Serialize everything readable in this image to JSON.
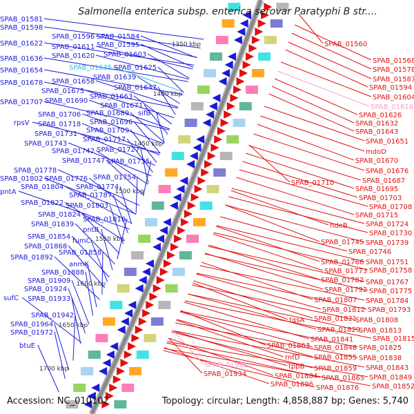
{
  "title": "Salmonella enterica subsp. enterica serovar Paratyphi B str....",
  "footer": {
    "accession": "Accession: NC_010102",
    "summary": "Topology: circular; Length: 4,858,887 bp; Genes: 5,740"
  },
  "colors": {
    "forward_strand": "#1a1ad6",
    "reverse_strand": "#e01010",
    "highlight_blue": "#22bbee",
    "highlight_red": "#f4a0c8",
    "backbone": "#888888",
    "marker": "#228822"
  },
  "scale_ticks": [
    "1350 kbp",
    "1400 kbp",
    "1450 kbp",
    "1500 kbp",
    "1550 kbp",
    "1600 kbp",
    "1650 kbp",
    "1700 kbp"
  ],
  "left_labels": [
    {
      "text": "SPAB_01581"
    },
    {
      "text": "SPAB_01598"
    },
    {
      "text": "SPAB_01596"
    },
    {
      "text": "SPAB_01584"
    },
    {
      "text": "SPAB_01622"
    },
    {
      "text": "SPAB_01611"
    },
    {
      "text": "SPAB_01595"
    },
    {
      "text": "SPAB_01636"
    },
    {
      "text": "SPAB_01620"
    },
    {
      "text": "SPAB_01603"
    },
    {
      "text": "SPAB_01654"
    },
    {
      "text": "SPAB_01635",
      "highlight": true
    },
    {
      "text": "SPAB_01625"
    },
    {
      "text": "SPAB_01678"
    },
    {
      "text": "SPAB_01658"
    },
    {
      "text": "SPAB_01639"
    },
    {
      "text": "SPAB_01675"
    },
    {
      "text": "SPAB_01647"
    },
    {
      "text": "SPAB_01663"
    },
    {
      "text": "SPAB_01707"
    },
    {
      "text": "SPAB_01690"
    },
    {
      "text": "SPAB_01671"
    },
    {
      "text": "SPAB_01706"
    },
    {
      "text": "SPAB_01689"
    },
    {
      "text": "sifB"
    },
    {
      "text": "rpsV"
    },
    {
      "text": "SPAB_01718"
    },
    {
      "text": "SPAB_01696"
    },
    {
      "text": "SPAB_01731"
    },
    {
      "text": "SPAB_01709"
    },
    {
      "text": "SPAB_01743"
    },
    {
      "text": "SPAB_01717"
    },
    {
      "text": "SPAB_01742"
    },
    {
      "text": "SPAB_01727"
    },
    {
      "text": "SPAB_01747"
    },
    {
      "text": "SPAB_01735"
    },
    {
      "text": "SPAB_01778"
    },
    {
      "text": "SPAB_01802"
    },
    {
      "text": "SPAB_01776"
    },
    {
      "text": "SPAB_01754"
    },
    {
      "text": "SPAB_01804"
    },
    {
      "text": "SPAB_01774"
    },
    {
      "text": "pntA"
    },
    {
      "text": "SPAB_01787"
    },
    {
      "text": "SPAB_01822"
    },
    {
      "text": "SPAB_01803"
    },
    {
      "text": "SPAB_01824"
    },
    {
      "text": "SPAB_01810"
    },
    {
      "text": "SPAB_01839"
    },
    {
      "text": "pntB"
    },
    {
      "text": "SPAB_01854"
    },
    {
      "text": "fumC"
    },
    {
      "text": "SPAB_01868"
    },
    {
      "text": "SPAB_01858"
    },
    {
      "text": "SPAB_01892"
    },
    {
      "text": "anmK"
    },
    {
      "text": "SPAB_01888"
    },
    {
      "text": "SPAB_01909"
    },
    {
      "text": "SPAB_01924"
    },
    {
      "text": "sufC"
    },
    {
      "text": "SPAB_01933"
    },
    {
      "text": "SPAB_01942"
    },
    {
      "text": "SPAB_01964"
    },
    {
      "text": "SPAB_01972"
    },
    {
      "text": "btuE"
    }
  ],
  "right_labels": [
    {
      "text": "SPAB_01560"
    },
    {
      "text": "SPAB_01568"
    },
    {
      "text": "SPAB_01578"
    },
    {
      "text": "SPAB_01587"
    },
    {
      "text": "SPAB_01594"
    },
    {
      "text": "SPAB_01604"
    },
    {
      "text": "SPAB_01616",
      "highlight": true
    },
    {
      "text": "SPAB_01626"
    },
    {
      "text": "SPAB_01632"
    },
    {
      "text": "SPAB_01643"
    },
    {
      "text": "SPAB_01651"
    },
    {
      "text": "mdoD"
    },
    {
      "text": "SPAB_01670"
    },
    {
      "text": "SPAB_01676"
    },
    {
      "text": "SPAB_01710"
    },
    {
      "text": "SPAB_01687"
    },
    {
      "text": "SPAB_01695"
    },
    {
      "text": "SPAB_01703"
    },
    {
      "text": "SPAB_01708"
    },
    {
      "text": "SPAB_01715"
    },
    {
      "text": "hdeB"
    },
    {
      "text": "SPAB_01724"
    },
    {
      "text": "SPAB_01730"
    },
    {
      "text": "SPAB_01745"
    },
    {
      "text": "SPAB_01739"
    },
    {
      "text": "SPAB_01746"
    },
    {
      "text": "SPAB_01766"
    },
    {
      "text": "SPAB_01751"
    },
    {
      "text": "SPAB_01773"
    },
    {
      "text": "SPAB_01758"
    },
    {
      "text": "SPAB_01782"
    },
    {
      "text": "SPAB_01767"
    },
    {
      "text": "SPAB_01792"
    },
    {
      "text": "SPAB_01775"
    },
    {
      "text": "SPAB_01807"
    },
    {
      "text": "SPAB_01784"
    },
    {
      "text": "SPAB_01812"
    },
    {
      "text": "SPAB_01793"
    },
    {
      "text": "tqsA"
    },
    {
      "text": "SPAB_01821"
    },
    {
      "text": "SPAB_01808"
    },
    {
      "text": "SPAB_01829"
    },
    {
      "text": "SPAB_01813"
    },
    {
      "text": "SPAB_01841"
    },
    {
      "text": "SPAB_01815"
    },
    {
      "text": "SPAB_01863"
    },
    {
      "text": "SPAB_01848"
    },
    {
      "text": "SPAB_01825"
    },
    {
      "text": "rnfD"
    },
    {
      "text": "SPAB_01855"
    },
    {
      "text": "SPAB_01838"
    },
    {
      "text": "tppB"
    },
    {
      "text": "SPAB_01859"
    },
    {
      "text": "SPAB_01843"
    },
    {
      "text": "SPAB_01884"
    },
    {
      "text": "SPAB_01865"
    },
    {
      "text": "SPAB_01849"
    },
    {
      "text": "SPAB_01896"
    },
    {
      "text": "SPAB_01876"
    },
    {
      "text": "SPAB_01852"
    },
    {
      "text": "SPAB_01901",
      "highlight": true
    },
    {
      "text": "SPAB_01934"
    }
  ]
}
